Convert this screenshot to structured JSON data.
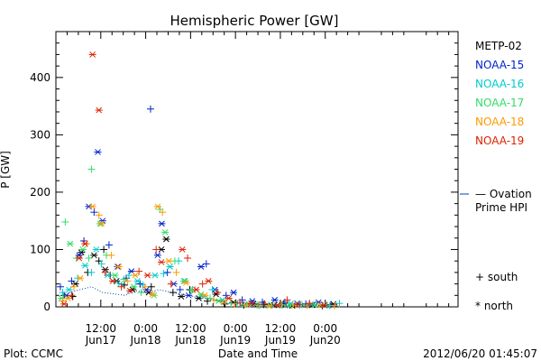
{
  "chart_data": {
    "type": "scatter",
    "title": "Hemispheric Power [GW]",
    "xlabel": "Date and Time",
    "ylabel": "P [GW]",
    "ylim": [
      0,
      480
    ],
    "xlim_hours": [
      0,
      107.5
    ],
    "x_ticks": [
      {
        "line1": "12:00",
        "line2": "Jun17",
        "hour": 12
      },
      {
        "line1": "0:00",
        "line2": "Jun18",
        "hour": 24
      },
      {
        "line1": "12:00",
        "line2": "Jun18",
        "hour": 36
      },
      {
        "line1": "0:00",
        "line2": "Jun19",
        "hour": 48
      },
      {
        "line1": "12:00",
        "line2": "Jun19",
        "hour": 60
      },
      {
        "line1": "0:00",
        "line2": "Jun20",
        "hour": 72
      }
    ],
    "y_ticks": [
      0,
      100,
      200,
      300,
      400
    ],
    "grid": false,
    "legend_position": "right",
    "series": [
      {
        "name": "METP-02",
        "color": "#000000",
        "points": [
          [
            2.2,
            20,
            "+"
          ],
          [
            5.2,
            40,
            "*"
          ],
          [
            8.5,
            60,
            "+"
          ],
          [
            10.2,
            90,
            "*"
          ],
          [
            11.5,
            80,
            "+"
          ],
          [
            13.2,
            65,
            "*"
          ],
          [
            14.5,
            55,
            "+"
          ],
          [
            16.2,
            45,
            "*"
          ],
          [
            18.3,
            38,
            "+"
          ],
          [
            20.5,
            30,
            "*"
          ],
          [
            22.5,
            40,
            "+"
          ],
          [
            24.8,
            25,
            "*"
          ],
          [
            25.5,
            35,
            "+"
          ],
          [
            28.2,
            100,
            "*"
          ],
          [
            29.5,
            118,
            "*"
          ],
          [
            31.3,
            25,
            "+"
          ],
          [
            33.5,
            18,
            "*"
          ],
          [
            35.8,
            30,
            "+"
          ],
          [
            38.2,
            15,
            "*"
          ],
          [
            40.5,
            10,
            "+"
          ],
          [
            42.8,
            22,
            "*"
          ],
          [
            45.2,
            5,
            "+"
          ],
          [
            47.5,
            8,
            "*"
          ],
          [
            50.2,
            3,
            "+"
          ],
          [
            52.8,
            5,
            "*"
          ],
          [
            55.5,
            4,
            "+"
          ],
          [
            58.3,
            3,
            "*"
          ],
          [
            60.8,
            5,
            "+"
          ],
          [
            63.2,
            2,
            "*"
          ],
          [
            65.8,
            4,
            "+"
          ],
          [
            68.5,
            3,
            "*"
          ],
          [
            71.2,
            2,
            "+"
          ],
          [
            74.2,
            5,
            "*"
          ],
          [
            4.5,
            18,
            "+"
          ],
          [
            12.8,
            100,
            "+"
          ],
          [
            6.8,
            95,
            "*"
          ]
        ]
      },
      {
        "name": "NOAA-15",
        "color": "#0022cc",
        "points": [
          [
            1.2,
            35,
            "+"
          ],
          [
            2.8,
            20,
            "*"
          ],
          [
            4.2,
            45,
            "+"
          ],
          [
            6.2,
            90,
            "*"
          ],
          [
            7.5,
            115,
            "+"
          ],
          [
            8.8,
            175,
            "*"
          ],
          [
            10.2,
            165,
            "+"
          ],
          [
            11.2,
            270,
            "*"
          ],
          [
            12.5,
            150,
            "*"
          ],
          [
            14.2,
            108,
            "+"
          ],
          [
            16.5,
            70,
            "*"
          ],
          [
            18.8,
            50,
            "+"
          ],
          [
            20.2,
            62,
            "*"
          ],
          [
            22.5,
            40,
            "+"
          ],
          [
            24.2,
            30,
            "*"
          ],
          [
            25.3,
            345,
            "+"
          ],
          [
            27.2,
            90,
            "*"
          ],
          [
            28.3,
            145,
            "*"
          ],
          [
            29.8,
            60,
            "+"
          ],
          [
            31.5,
            40,
            "*"
          ],
          [
            33.2,
            30,
            "+"
          ],
          [
            35.5,
            20,
            "*"
          ],
          [
            38.8,
            70,
            "*"
          ],
          [
            40.2,
            75,
            "+"
          ],
          [
            42.5,
            30,
            "*"
          ],
          [
            45.5,
            20,
            "+"
          ],
          [
            47.5,
            25,
            "*"
          ],
          [
            49.8,
            12,
            "+"
          ],
          [
            52.5,
            10,
            "*"
          ],
          [
            55.2,
            8,
            "+"
          ],
          [
            58.5,
            12,
            "*"
          ],
          [
            61.2,
            8,
            "+"
          ],
          [
            64.5,
            6,
            "*"
          ],
          [
            66.8,
            5,
            "+"
          ],
          [
            70.2,
            8,
            "*"
          ],
          [
            73.5,
            4,
            "+"
          ]
        ]
      },
      {
        "name": "NOAA-16",
        "color": "#00cccc",
        "points": [
          [
            1.8,
            25,
            "+"
          ],
          [
            3.5,
            30,
            "*"
          ],
          [
            5.8,
            50,
            "+"
          ],
          [
            7.8,
            72,
            "*"
          ],
          [
            9.5,
            60,
            "+"
          ],
          [
            10.8,
            100,
            "*"
          ],
          [
            12.2,
            75,
            "+"
          ],
          [
            13.8,
            55,
            "*"
          ],
          [
            15.5,
            45,
            "+"
          ],
          [
            17.2,
            40,
            "*"
          ],
          [
            19.5,
            55,
            "+"
          ],
          [
            21.8,
            45,
            "*"
          ],
          [
            23.2,
            38,
            "+"
          ],
          [
            26.5,
            55,
            "*"
          ],
          [
            28.8,
            58,
            "+"
          ],
          [
            30.5,
            70,
            "*"
          ],
          [
            32.8,
            80,
            "+"
          ],
          [
            34.5,
            45,
            "*"
          ],
          [
            36.5,
            30,
            "+"
          ],
          [
            39.5,
            18,
            "*"
          ],
          [
            41.8,
            30,
            "+"
          ],
          [
            44.5,
            12,
            "*"
          ],
          [
            48.5,
            6,
            "+"
          ],
          [
            51.5,
            5,
            "*"
          ],
          [
            54.5,
            3,
            "+"
          ],
          [
            57.5,
            4,
            "*"
          ],
          [
            60.5,
            3,
            "+"
          ],
          [
            62.8,
            6,
            "*"
          ],
          [
            65.2,
            3,
            "+"
          ],
          [
            68.2,
            5,
            "*"
          ],
          [
            72.5,
            3,
            "+"
          ],
          [
            75.8,
            6,
            "+"
          ]
        ]
      },
      {
        "name": "NOAA-17",
        "color": "#33dd66",
        "points": [
          [
            1.5,
            15,
            "*"
          ],
          [
            2.5,
            148,
            "+"
          ],
          [
            3.8,
            110,
            "*"
          ],
          [
            5.5,
            85,
            "+"
          ],
          [
            7.2,
            100,
            "*"
          ],
          [
            8.8,
            85,
            "+"
          ],
          [
            9.5,
            240,
            "+"
          ],
          [
            11.8,
            145,
            "*"
          ],
          [
            13.5,
            90,
            "+"
          ],
          [
            15.8,
            55,
            "*"
          ],
          [
            18.2,
            48,
            "+"
          ],
          [
            20.8,
            35,
            "*"
          ],
          [
            22.8,
            25,
            "+"
          ],
          [
            26.2,
            20,
            "*"
          ],
          [
            27.8,
            170,
            "+"
          ],
          [
            29.2,
            130,
            "*"
          ],
          [
            31.8,
            80,
            "+"
          ],
          [
            34.2,
            45,
            "*"
          ],
          [
            36.2,
            28,
            "+"
          ],
          [
            38.8,
            22,
            "*"
          ],
          [
            41.2,
            15,
            "+"
          ],
          [
            43.5,
            10,
            "*"
          ],
          [
            46.8,
            6,
            "+"
          ],
          [
            50.5,
            4,
            "*"
          ],
          [
            53.8,
            3,
            "+"
          ],
          [
            56.8,
            2,
            "*"
          ],
          [
            59.8,
            3,
            "+"
          ],
          [
            62.5,
            2,
            "*"
          ],
          [
            65.8,
            4,
            "+"
          ],
          [
            69.2,
            3,
            "*"
          ],
          [
            73.2,
            2,
            "+"
          ]
        ]
      },
      {
        "name": "NOAA-18",
        "color": "#ff9900",
        "points": [
          [
            1.8,
            10,
            "+"
          ],
          [
            3.2,
            15,
            "*"
          ],
          [
            4.8,
            35,
            "+"
          ],
          [
            6.5,
            50,
            "*"
          ],
          [
            8.2,
            110,
            "+"
          ],
          [
            9.8,
            175,
            "*"
          ],
          [
            11.5,
            160,
            "+"
          ],
          [
            12.2,
            145,
            "*"
          ],
          [
            14.8,
            90,
            "+"
          ],
          [
            16.8,
            70,
            "*"
          ],
          [
            19.2,
            45,
            "+"
          ],
          [
            21.2,
            55,
            "*"
          ],
          [
            23.8,
            35,
            "+"
          ],
          [
            25.8,
            22,
            "*"
          ],
          [
            27.2,
            175,
            "*"
          ],
          [
            28.5,
            165,
            "+"
          ],
          [
            30.2,
            80,
            "*"
          ],
          [
            32.2,
            60,
            "+"
          ],
          [
            34.8,
            42,
            "*"
          ],
          [
            37.2,
            30,
            "+"
          ],
          [
            39.8,
            20,
            "*"
          ],
          [
            42.2,
            12,
            "+"
          ],
          [
            44.8,
            8,
            "*"
          ],
          [
            47.8,
            5,
            "+"
          ],
          [
            51.2,
            4,
            "*"
          ],
          [
            54.2,
            3,
            "+"
          ],
          [
            57.2,
            2,
            "*"
          ],
          [
            60.2,
            4,
            "+"
          ],
          [
            63.8,
            3,
            "*"
          ],
          [
            67.2,
            2,
            "+"
          ],
          [
            70.8,
            3,
            "*"
          ],
          [
            74.5,
            2,
            "+"
          ]
        ]
      },
      {
        "name": "NOAA-19",
        "color": "#dd2200",
        "points": [
          [
            2.2,
            5,
            "*"
          ],
          [
            4.2,
            20,
            "+"
          ],
          [
            6.2,
            85,
            "*"
          ],
          [
            7.8,
            110,
            "*"
          ],
          [
            9.8,
            440,
            "*"
          ],
          [
            11.5,
            343,
            "*"
          ],
          [
            13.2,
            60,
            "+"
          ],
          [
            15.2,
            45,
            "*"
          ],
          [
            17.5,
            35,
            "+"
          ],
          [
            19.8,
            28,
            "*"
          ],
          [
            22.2,
            62,
            "+"
          ],
          [
            24.5,
            55,
            "*"
          ],
          [
            26.8,
            100,
            "+"
          ],
          [
            28.2,
            78,
            "*"
          ],
          [
            30.8,
            40,
            "+"
          ],
          [
            33.8,
            100,
            "*"
          ],
          [
            35.2,
            85,
            "+"
          ],
          [
            37.5,
            30,
            "*"
          ],
          [
            39.2,
            40,
            "+"
          ],
          [
            40.8,
            45,
            "*"
          ],
          [
            43.2,
            25,
            "+"
          ],
          [
            46.2,
            15,
            "*"
          ],
          [
            49.2,
            8,
            "+"
          ],
          [
            52.2,
            6,
            "*"
          ],
          [
            55.8,
            5,
            "+"
          ],
          [
            59.2,
            3,
            "*"
          ],
          [
            61.8,
            12,
            "+"
          ],
          [
            64.8,
            4,
            "*"
          ],
          [
            67.8,
            6,
            "+"
          ],
          [
            71.8,
            3,
            "*"
          ]
        ]
      }
    ],
    "ovation": {
      "label1": "— Ovation",
      "label2": "Prime HPI",
      "color": "#0044aa",
      "points": [
        [
          3.5,
          25
        ],
        [
          6.5,
          30
        ],
        [
          9.5,
          35
        ],
        [
          12.5,
          25
        ],
        [
          18.5,
          20
        ],
        [
          21.5,
          28
        ],
        [
          24.5,
          25
        ],
        [
          27.5,
          30
        ],
        [
          33.5,
          22
        ],
        [
          36.5,
          18
        ],
        [
          39.5,
          15
        ],
        [
          42.5,
          12
        ],
        [
          45.5,
          8
        ],
        [
          48.5,
          6
        ],
        [
          51.5,
          5
        ],
        [
          54.5,
          4
        ],
        [
          57.5,
          4
        ],
        [
          60.5,
          3
        ],
        [
          63.5,
          3
        ],
        [
          66.5,
          3
        ],
        [
          69.5,
          3
        ],
        [
          72.5,
          3
        ]
      ]
    },
    "symbol_legend": {
      "south_label": "+ south",
      "north_label": "* north"
    },
    "footer": {
      "left": "Plot: CCMC",
      "right": "2012/06/20 01:45:07"
    }
  }
}
